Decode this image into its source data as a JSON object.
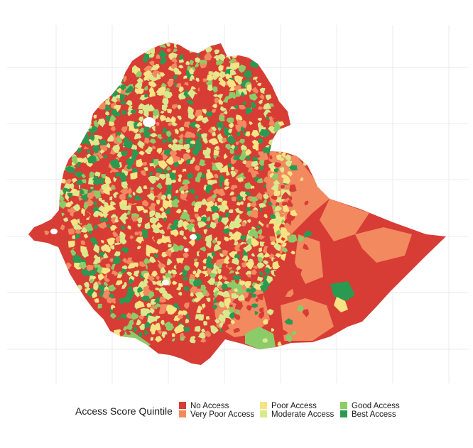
{
  "map": {
    "region": "Ethiopia",
    "grid": true,
    "fill_by": "Access Score Quintile"
  },
  "legend": {
    "title": "Access Score Quintile",
    "placement": "bottom",
    "items": [
      {
        "label": "No Access",
        "color": "#d73c35"
      },
      {
        "label": "Very Poor Access",
        "color": "#f2895f"
      },
      {
        "label": "Poor Access",
        "color": "#f7e383"
      },
      {
        "label": "Moderate Access",
        "color": "#d9e88c"
      },
      {
        "label": "Good Access",
        "color": "#8ccc68"
      },
      {
        "label": "Best Access",
        "color": "#2a9a52"
      }
    ]
  },
  "colors": {
    "background": "#ffffff",
    "gridline": "#ebebeb"
  }
}
